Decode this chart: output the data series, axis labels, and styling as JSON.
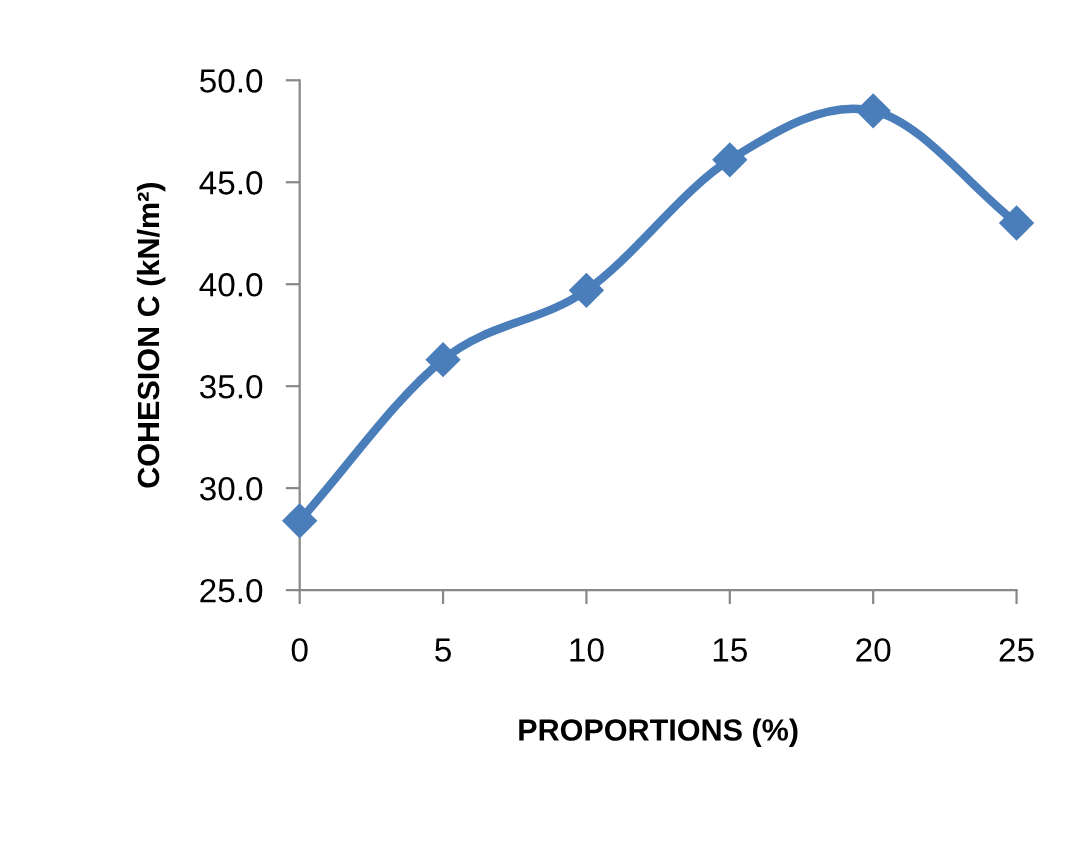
{
  "chart_data": {
    "type": "line",
    "xlabel": "PROPORTIONS (%)",
    "ylabel": "COHESION C (kN/m²)",
    "x": [
      0,
      5,
      10,
      15,
      20,
      25
    ],
    "series": [
      {
        "color": "#4a7ebb",
        "values": [
          28.4,
          36.3,
          39.7,
          46.1,
          48.5,
          43.0
        ]
      }
    ],
    "xlim": [
      0,
      25
    ],
    "xticks": [
      0,
      5,
      10,
      15,
      20,
      25
    ],
    "ylim": [
      25,
      50
    ],
    "yticks": [
      {
        "value": 25,
        "label": "25.0"
      },
      {
        "value": 30,
        "label": "30.0"
      },
      {
        "value": 35,
        "label": "35.0"
      },
      {
        "value": 40,
        "label": "40.0"
      },
      {
        "value": 45,
        "label": "45.0"
      },
      {
        "value": 50,
        "label": "50.0"
      }
    ],
    "marker": "diamond",
    "line_style": "solid",
    "grid": false,
    "legend": false
  }
}
